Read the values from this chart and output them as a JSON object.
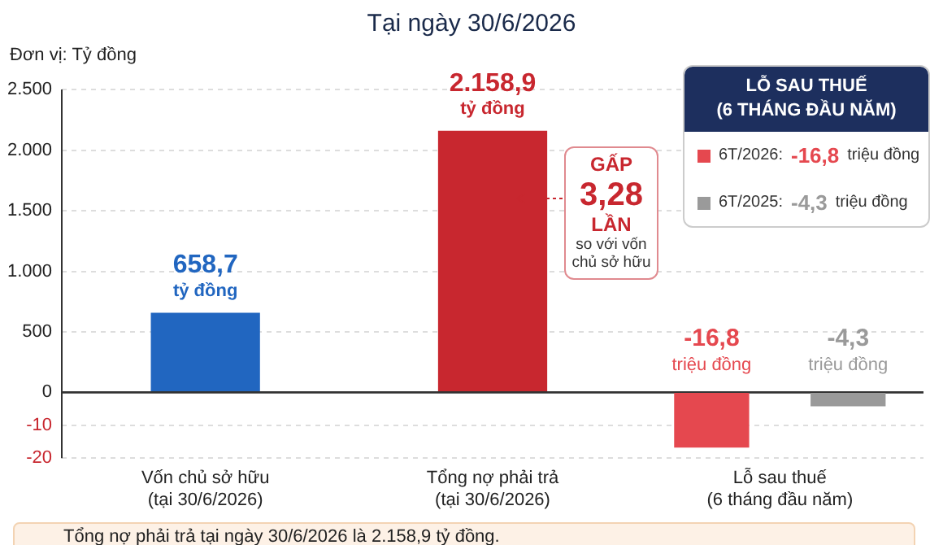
{
  "chart_data": [
    {
      "type": "bar",
      "subtitle": "Tại ngày 30/6/2026",
      "ylabel": "Đơn vị: Tỷ đồng",
      "categories": [
        null,
        null,
        null
      ],
      "values": [
        658.7,
        2158.9,
        null
      ],
      "colors": [
        "#2166c0",
        "#c8272f",
        "#c8272f"
      ],
      "value_labels": [
        "658,7\ntỷ đồng",
        "2.158,9\ntỷ đồng",
        null
      ],
      "ylim": [
        0,
        2500
      ],
      "yticks": [
        {
          "value": 500,
          "label": "500"
        },
        {
          "value": 1000,
          "label": "1.000"
        },
        {
          "value": 1500,
          "label": "1.500"
        },
        {
          "value": 2000,
          "label": "2.000"
        },
        {
          "value": 2500,
          "label": "2.500"
        }
      ],
      "grid": "y",
      "tick_labels": "y",
      "annotations": [
        "GẤP\n3,28\nLẦN\nso với vốn\nchủ sở hữu"
      ]
    },
    {
      "type": "bar",
      "categories": [
        "Vốn chủ sở hữu\n(tại 30/6/2026)",
        "Tổng nợ phải trả\n(tại 30/6/2026)",
        "Lỗ sau thuế\n(6 tháng đầu năm)"
      ],
      "series": [
        {
          "name": "6T/2026: -16,8 triệu đồng",
          "color": "#e5484f",
          "values": [
            null,
            null,
            -16.8
          ],
          "value_labels": [
            null,
            null,
            "-16,8\ntriệu đồng"
          ]
        },
        {
          "name": "6T/2025: -4,3 triệu đồng",
          "color": "#9a9a9a",
          "values": [
            null,
            null,
            -4.3
          ],
          "value_labels": [
            null,
            null,
            "-4,3\ntriệu đồng"
          ]
        }
      ],
      "ylim": [
        -20,
        0
      ],
      "yticks": [
        0,
        -10,
        -20
      ],
      "grid": "y",
      "legend": "top right",
      "legend_title": "LỖ SAU THUẾ\n(6 THÁNG ĐẦU NĂM)",
      "annotations": [
        "Tổng nợ phải trả tại ngày 30/6/2026 là 2.158,9 tỷ đồng."
      ]
    }
  ]
}
